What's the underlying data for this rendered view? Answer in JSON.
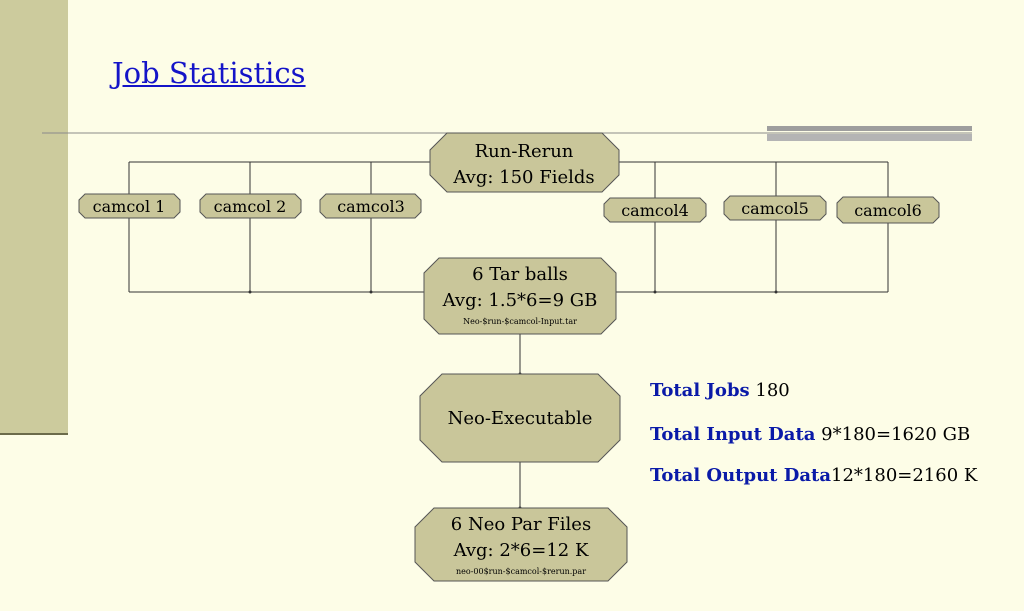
{
  "title": "Job Statistics",
  "colors": {
    "background": "#fdfde7",
    "sidebar": "#cccb9d",
    "node_fill": "#c9c69a",
    "title": "#1414c8",
    "stat_label": "#0a1aa8"
  },
  "nodes": {
    "run_rerun": {
      "line1": "Run-Rerun",
      "line2": "Avg: 150 Fields"
    },
    "camcol1": "camcol 1",
    "camcol2": "camcol 2",
    "camcol3": "camcol3",
    "camcol4": "camcol4",
    "camcol5": "camcol5",
    "camcol6": "camcol6",
    "tarballs": {
      "line1": "6 Tar balls",
      "line2": "Avg: 1.5*6=9 GB",
      "note": "Neo-$run-$camcol-Input.tar"
    },
    "executable": "Neo-Executable",
    "par_files": {
      "line1": "6 Neo Par Files",
      "line2": "Avg: 2*6=12 K",
      "note": "neo-00$run-$camcol-$rerun.par"
    }
  },
  "stats": {
    "jobs_label": "Total Jobs",
    "jobs_value": "180",
    "input_label": "Total Input Data",
    "input_value": "9*180=1620 GB",
    "output_label": "Total Output Data",
    "output_value": "12*180=2160 K"
  }
}
